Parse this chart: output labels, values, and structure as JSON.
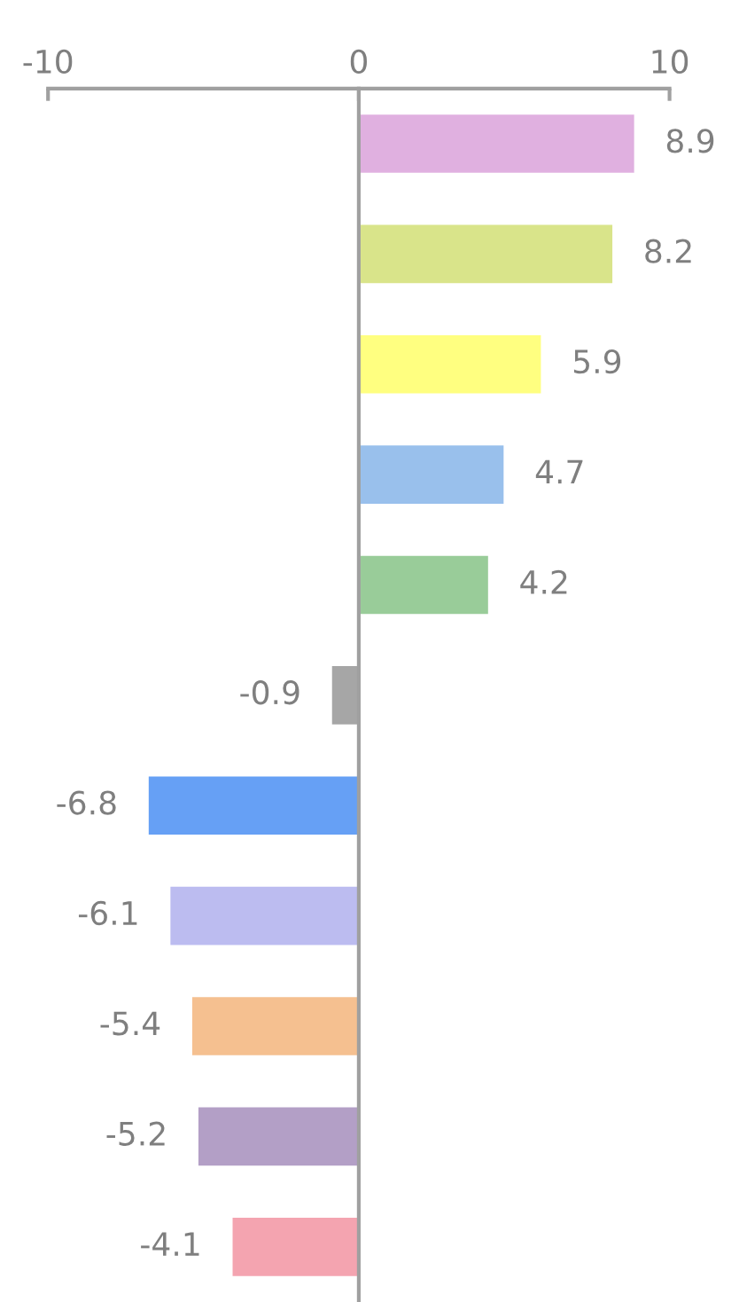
{
  "chart_data": {
    "type": "bar",
    "orientation": "horizontal",
    "categories": [
      null,
      null,
      null,
      null,
      null,
      null,
      null,
      null,
      null,
      null,
      null
    ],
    "values": [
      8.9,
      8.2,
      5.9,
      4.7,
      4.2,
      -0.9,
      -6.8,
      -6.1,
      -5.4,
      -5.2,
      -4.1
    ],
    "colors": [
      "#e0b0e0",
      "#d9e48a",
      "#ffff80",
      "#99c0ec",
      "#99cc99",
      "#a6a6a6",
      "#66a0f5",
      "#bcbcf0",
      "#f5c090",
      "#b39fc6",
      "#f4a4b0"
    ],
    "xlim": [
      -10,
      10
    ],
    "xticks": [
      -10,
      0,
      10
    ],
    "tick_labels": "x",
    "data_labels": true,
    "legend": false
  }
}
